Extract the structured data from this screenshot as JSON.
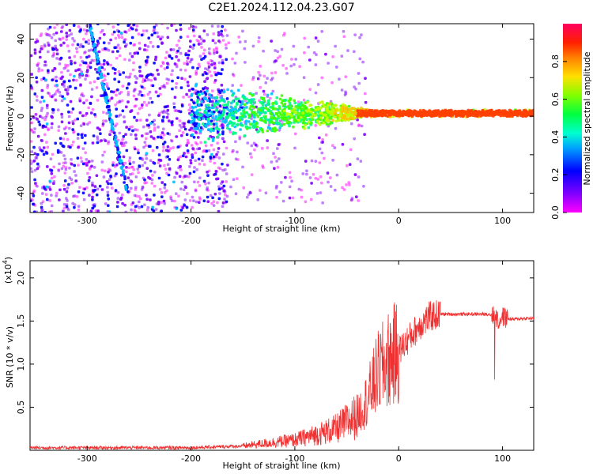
{
  "figure": {
    "title": "C2E1.2024.112.04.23.G07"
  },
  "chart_data": [
    {
      "type": "heatmap",
      "xlabel": "Height of straight line (km)",
      "ylabel": "Frequency (Hz)",
      "xlim": [
        -355,
        130
      ],
      "ylim": [
        -50,
        48
      ],
      "xticks": [
        -300,
        -200,
        -100,
        0,
        100
      ],
      "yticks": [
        -40,
        -20,
        0,
        20,
        40
      ],
      "colorbar": {
        "label": "Normalized spectral amplitude",
        "range": [
          0.0,
          1.0
        ],
        "ticks": [
          0.0,
          0.2,
          0.4,
          0.6,
          0.8
        ],
        "colors": [
          "#ff00ff",
          "#8000ff",
          "#0000ff",
          "#00c0ff",
          "#00ff80",
          "#40ff00",
          "#c0ff00",
          "#ffc000",
          "#ff4000",
          "#ff0040"
        ]
      },
      "features": {
        "diagonal_track": {
          "x_start": -298,
          "y_start": 48,
          "x_end": -261,
          "y_end": -40,
          "amplitude": 0.25
        },
        "carrier_band": {
          "x_start": -200,
          "x_end": 130,
          "center_hz": 1.5,
          "peak_amplitude": 0.85
        }
      }
    },
    {
      "type": "line",
      "xlabel": "Height of straight line (km)",
      "ylabel": "SNR (10 * v/v)",
      "scale_label": "(x10",
      "scale_exp": "4",
      "scale_close": ")",
      "xlim": [
        -355,
        130
      ],
      "ylim": [
        0,
        2.2
      ],
      "xticks": [
        -300,
        -200,
        -100,
        0,
        100
      ],
      "yticks": [
        0.5,
        1.0,
        1.5,
        2.0
      ],
      "ytick_labels": [
        "0.5",
        "1.0",
        "1.5",
        "2.0"
      ],
      "series": [
        {
          "color": "#f03030",
          "envelope_x": [
            -355,
            -200,
            -150,
            -100,
            -80,
            -60,
            -40,
            -30,
            -20,
            -10,
            0,
            10,
            20,
            30,
            40,
            60,
            80,
            90,
            95,
            100,
            105,
            110,
            120,
            130
          ],
          "envelope_y": [
            0.03,
            0.03,
            0.05,
            0.12,
            0.18,
            0.25,
            0.4,
            0.6,
            0.9,
            1.05,
            1.15,
            1.3,
            1.45,
            1.55,
            1.58,
            1.58,
            1.58,
            1.58,
            1.5,
            1.55,
            1.53,
            1.52,
            1.53,
            1.53
          ]
        }
      ]
    }
  ]
}
